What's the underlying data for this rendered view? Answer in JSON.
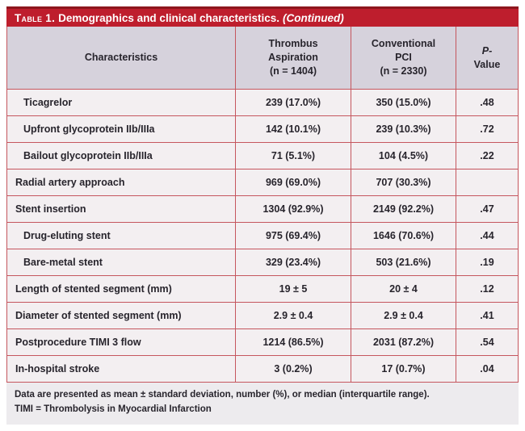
{
  "table": {
    "title": {
      "label": "Table 1.",
      "text": "Demographics and clinical characteristics.",
      "continued": "(Continued)"
    },
    "header": {
      "characteristics": "Characteristics",
      "thrombus_aspiration": "Thrombus\nAspiration\n(n = 1404)",
      "conventional_pci": "Conventional\nPCI\n(n = 2330)",
      "p_line1": "P-",
      "p_line2": "Value"
    },
    "rows": [
      {
        "label": "Ticagrelor",
        "indent": 1,
        "ta": "239 (17.0%)",
        "pci": "350 (15.0%)",
        "p": ".48"
      },
      {
        "label": "Upfront glycoprotein IIb/IIIa",
        "indent": 1,
        "ta": "142 (10.1%)",
        "pci": "239 (10.3%)",
        "p": ".72"
      },
      {
        "label": "Bailout glycoprotein IIb/IIIa",
        "indent": 1,
        "ta": "71 (5.1%)",
        "pci": "104 (4.5%)",
        "p": ".22"
      },
      {
        "label": "Radial artery approach",
        "indent": 0,
        "ta": "969 (69.0%)",
        "pci": "707 (30.3%)",
        "p": ""
      },
      {
        "label": "Stent insertion",
        "indent": 0,
        "ta": "1304 (92.9%)",
        "pci": "2149 (92.2%)",
        "p": ".47"
      },
      {
        "label": "Drug-eluting stent",
        "indent": 1,
        "ta": "975 (69.4%)",
        "pci": "1646 (70.6%)",
        "p": ".44"
      },
      {
        "label": "Bare-metal stent",
        "indent": 1,
        "ta": "329 (23.4%)",
        "pci": "503 (21.6%)",
        "p": ".19"
      },
      {
        "label": "Length of stented segment (mm)",
        "indent": 0,
        "ta": "19 ± 5",
        "pci": "20 ± 4",
        "p": ".12"
      },
      {
        "label": "Diameter of stented segment (mm)",
        "indent": 0,
        "ta": "2.9 ± 0.4",
        "pci": "2.9 ± 0.4",
        "p": ".41"
      },
      {
        "label": "Postprocedure TIMI 3 flow",
        "indent": 0,
        "ta": "1214 (86.5%)",
        "pci": "2031 (87.2%)",
        "p": ".54"
      },
      {
        "label": "In-hospital stroke",
        "indent": 0,
        "ta": "3 (0.2%)",
        "pci": "17 (0.7%)",
        "p": ".04"
      }
    ],
    "footnotes": [
      "Data are presented as mean ± standard deviation, number (%), or median (interquartile range).",
      "TIMI = Thrombolysis in Myocardial Infarction"
    ],
    "colors": {
      "title_bar": "#be1e2d",
      "title_bar_top_edge": "#8e161e",
      "header_bg": "#d6d2dc",
      "row_bg": "#f3eff1",
      "footer_bg": "#edebee",
      "border": "#c5565e",
      "text": "#27242c",
      "title_text": "#ffffff"
    }
  }
}
